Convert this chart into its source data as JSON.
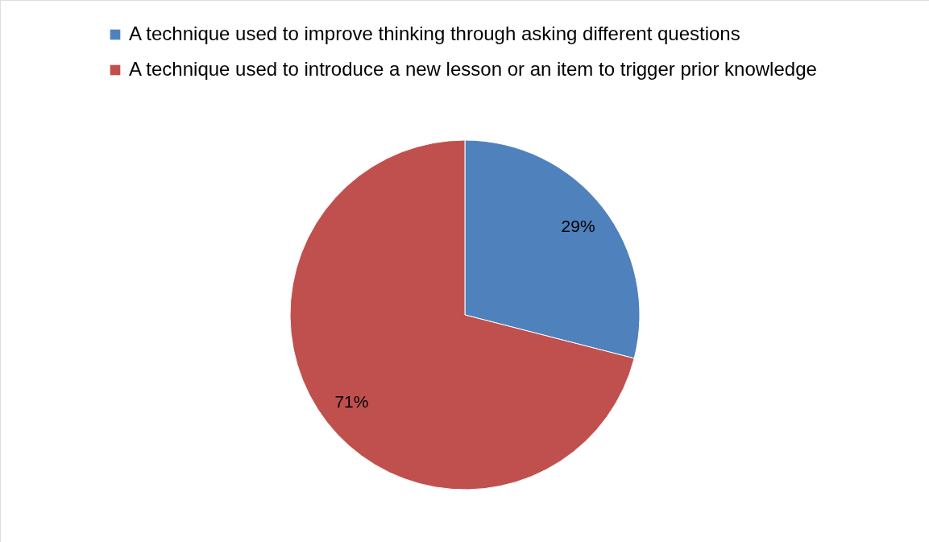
{
  "chart_data": {
    "type": "pie",
    "categories": [
      "A technique used to improve thinking through asking different questions",
      "A technique used to introduce a new lesson or an item to trigger prior knowledge"
    ],
    "values": [
      29,
      71
    ],
    "colors": [
      "#4f81bd",
      "#c0504d"
    ],
    "value_labels": [
      "29%",
      "71%"
    ],
    "legend": "top"
  }
}
